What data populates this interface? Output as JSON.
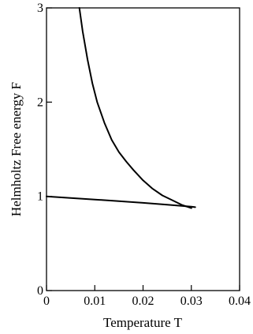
{
  "chart_data": {
    "type": "line",
    "xlabel": "Temperature  T",
    "ylabel": "Helmholtz Free energy  F",
    "xlim": [
      0,
      0.04
    ],
    "ylim": [
      0,
      3
    ],
    "x_ticks": [
      0,
      0.01,
      0.02,
      0.03,
      0.04
    ],
    "x_tick_labels": [
      "0",
      "0.01",
      "0.02",
      "0.03",
      "0.04"
    ],
    "y_ticks": [
      0,
      1,
      2,
      3
    ],
    "y_tick_labels": [
      "0",
      "1",
      "2",
      "3"
    ],
    "grid": false,
    "line_color": "#000000",
    "series": [
      {
        "x": [
          0.0068,
          0.0075,
          0.0085,
          0.0095,
          0.0105,
          0.012,
          0.0135,
          0.015,
          0.0165,
          0.018,
          0.02,
          0.022,
          0.024,
          0.026,
          0.028,
          0.03
        ],
        "y": [
          3.0,
          2.75,
          2.45,
          2.2,
          2.0,
          1.78,
          1.6,
          1.47,
          1.37,
          1.28,
          1.17,
          1.08,
          1.01,
          0.96,
          0.91,
          0.875
        ]
      },
      {
        "x": [
          0.0,
          0.005,
          0.01,
          0.015,
          0.02,
          0.025,
          0.03,
          0.0308
        ],
        "y": [
          1.0,
          0.983,
          0.966,
          0.949,
          0.931,
          0.912,
          0.891,
          0.885
        ]
      }
    ]
  }
}
